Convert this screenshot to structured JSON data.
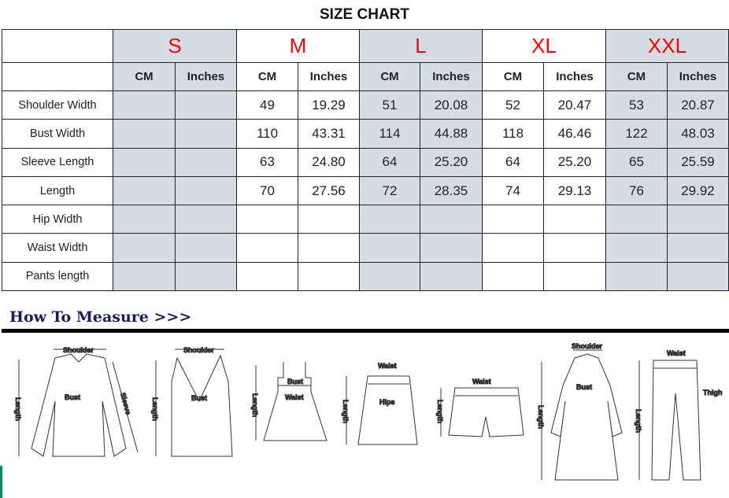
{
  "title": "SIZE CHART",
  "sizes": [
    "S",
    "M",
    "L",
    "XL",
    "XXL"
  ],
  "units": {
    "cm": "CM",
    "in": "Inches"
  },
  "rows": [
    {
      "label": "Shoulder Width",
      "values": [
        "",
        "",
        "49",
        "19.29",
        "51",
        "20.08",
        "52",
        "20.47",
        "53",
        "20.87"
      ]
    },
    {
      "label": "Bust Width",
      "values": [
        "",
        "",
        "110",
        "43.31",
        "114",
        "44.88",
        "118",
        "46.46",
        "122",
        "48.03"
      ]
    },
    {
      "label": "Sleeve Length",
      "values": [
        "",
        "",
        "63",
        "24.80",
        "64",
        "25.20",
        "64",
        "25.20",
        "65",
        "25.59"
      ]
    },
    {
      "label": "Length",
      "values": [
        "",
        "",
        "70",
        "27.56",
        "72",
        "28.35",
        "74",
        "29.13",
        "76",
        "29.92"
      ]
    },
    {
      "label": "Hip Width",
      "values": [
        "",
        "",
        "",
        "",
        "",
        "",
        "",
        "",
        "",
        ""
      ]
    },
    {
      "label": "Waist Width",
      "values": [
        "",
        "",
        "",
        "",
        "",
        "",
        "",
        "",
        "",
        ""
      ]
    },
    {
      "label": "Pants length",
      "values": [
        "",
        "",
        "",
        "",
        "",
        "",
        "",
        "",
        "",
        ""
      ]
    }
  ],
  "colors": {
    "size_label": "#ff0000",
    "shaded_column": "#d6dce4",
    "heading": "#1a1a5e"
  },
  "how_to_measure": "How To Measure >>>",
  "figures": {
    "shirt": {
      "shoulder": "Shoulder",
      "bust": "Bust",
      "sleeve": "Sleeve",
      "length": "Length"
    },
    "tank": {
      "shoulder": "Shoulder",
      "bust": "Bust",
      "length": "Length"
    },
    "dress": {
      "bust": "Bust",
      "waist": "Waist",
      "length": "Length"
    },
    "skirt": {
      "waist": "Waist",
      "hips": "Hips",
      "length": "Length"
    },
    "shorts": {
      "waist": "Waist",
      "length": "Length"
    },
    "coat": {
      "shoulder": "Shoulder",
      "bust": "Bust",
      "length": "Length"
    },
    "pants": {
      "waist": "Waist",
      "thigh": "Thigh",
      "length": "Length"
    }
  }
}
